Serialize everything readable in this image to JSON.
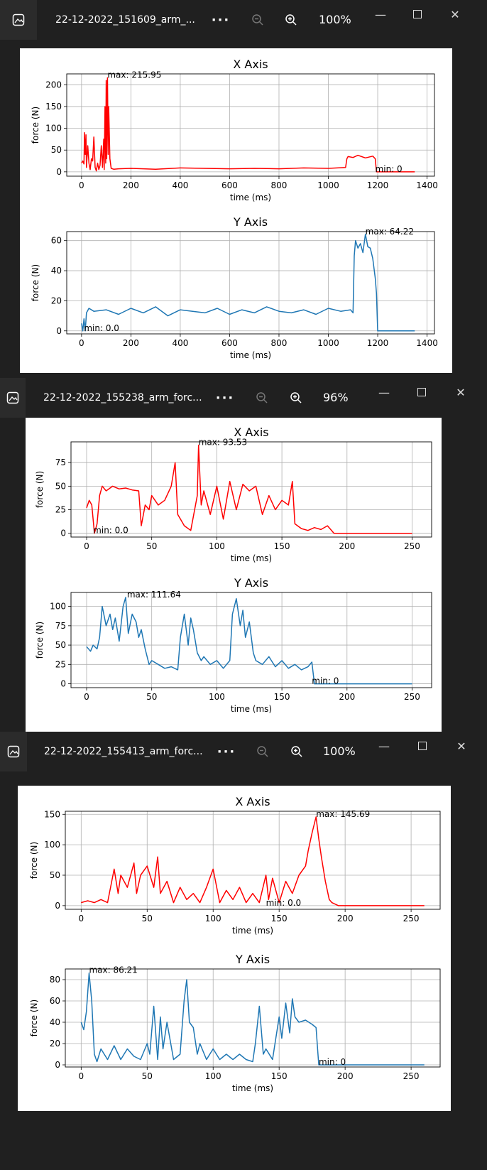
{
  "windows": [
    {
      "file_name": "22-12-2022_151609_arm_...",
      "zoom": "100%",
      "figure": [
        {
          "title": "X Axis",
          "xlabel": "time (ms)",
          "ylabel": "force (N)",
          "xticks": [
            "0",
            "200",
            "400",
            "600",
            "800",
            "1000",
            "1200",
            "1400"
          ],
          "yticks": [
            "0",
            "50",
            "100",
            "150",
            "200"
          ],
          "annotations": [
            "max: 215.95",
            "min: 0"
          ],
          "color": "#ff0000"
        },
        {
          "title": "Y Axis",
          "xlabel": "time (ms)",
          "ylabel": "force (N)",
          "xticks": [
            "0",
            "200",
            "400",
            "600",
            "800",
            "1000",
            "1200",
            "1400"
          ],
          "yticks": [
            "0",
            "20",
            "40",
            "60"
          ],
          "annotations": [
            "max: 64.22",
            "min: 0.0"
          ],
          "color": "#1f77b4"
        }
      ]
    },
    {
      "file_name": "22-12-2022_155238_arm_forc...",
      "zoom": "96%",
      "figure": [
        {
          "title": "X Axis",
          "xlabel": "time (ms)",
          "ylabel": "force (N)",
          "xticks": [
            "0",
            "50",
            "100",
            "150",
            "200",
            "250"
          ],
          "yticks": [
            "0",
            "25",
            "50",
            "75"
          ],
          "annotations": [
            "max: 93.53",
            "min: 0.0"
          ],
          "color": "#ff0000"
        },
        {
          "title": "Y Axis",
          "xlabel": "time (ms)",
          "ylabel": "force (N)",
          "xticks": [
            "0",
            "50",
            "100",
            "150",
            "200",
            "250"
          ],
          "yticks": [
            "0",
            "25",
            "50",
            "75",
            "100"
          ],
          "annotations": [
            "max: 111.64",
            "min: 0"
          ],
          "color": "#1f77b4"
        }
      ]
    },
    {
      "file_name": "22-12-2022_155413_arm_forc...",
      "zoom": "100%",
      "figure": [
        {
          "title": "X Axis",
          "xlabel": "time (ms)",
          "ylabel": "force (N)",
          "xticks": [
            "0",
            "50",
            "100",
            "150",
            "200",
            "250"
          ],
          "yticks": [
            "0",
            "50",
            "100",
            "150"
          ],
          "annotations": [
            "max: 145.69",
            "min: 0.0"
          ],
          "color": "#ff0000"
        },
        {
          "title": "Y Axis",
          "xlabel": "time (ms)",
          "ylabel": "force (N)",
          "xticks": [
            "0",
            "50",
            "100",
            "150",
            "200",
            "250"
          ],
          "yticks": [
            "0",
            "20",
            "40",
            "60",
            "80"
          ],
          "annotations": [
            "max: 86.21",
            "min: 0"
          ],
          "color": "#1f77b4"
        }
      ]
    }
  ],
  "chart_data": [
    {
      "type": "line",
      "title": "X Axis",
      "xlabel": "time (ms)",
      "ylabel": "force (N)",
      "xlim": [
        -60,
        1430
      ],
      "ylim": [
        -10,
        225
      ],
      "grid": true,
      "series": [
        {
          "x": [
            0,
            5,
            10,
            12,
            15,
            18,
            20,
            25,
            30,
            35,
            40,
            45,
            50,
            55,
            60,
            65,
            70,
            75,
            80,
            85,
            90,
            92,
            95,
            98,
            100,
            102,
            105,
            108,
            110,
            115,
            120,
            130,
            150,
            200,
            300,
            400,
            500,
            600,
            700,
            800,
            900,
            1000,
            1070,
            1075,
            1080,
            1100,
            1120,
            1150,
            1180,
            1190,
            1195,
            1200,
            1250,
            1300,
            1350
          ],
          "y": [
            20,
            25,
            18,
            90,
            40,
            85,
            10,
            60,
            20,
            5,
            30,
            25,
            80,
            10,
            2,
            20,
            5,
            15,
            60,
            10,
            75,
            5,
            150,
            20,
            210,
            30,
            215.95,
            40,
            150,
            30,
            8,
            6,
            7,
            8,
            6,
            9,
            8,
            7,
            8,
            7,
            9,
            8,
            10,
            30,
            35,
            33,
            38,
            32,
            36,
            30,
            0,
            0,
            0,
            0,
            0
          ]
        }
      ],
      "annotations": [
        "max: 215.95",
        "min: 0"
      ]
    },
    {
      "type": "line",
      "title": "Y Axis",
      "xlabel": "time (ms)",
      "ylabel": "force (N)",
      "xlim": [
        -60,
        1430
      ],
      "ylim": [
        -2,
        66
      ],
      "grid": true,
      "series": [
        {
          "x": [
            0,
            5,
            10,
            15,
            20,
            30,
            50,
            100,
            150,
            200,
            250,
            300,
            350,
            400,
            450,
            500,
            550,
            600,
            650,
            700,
            750,
            800,
            850,
            900,
            950,
            1000,
            1050,
            1090,
            1100,
            1105,
            1110,
            1120,
            1130,
            1140,
            1150,
            1160,
            1170,
            1180,
            1190,
            1195,
            1200,
            1210,
            1250,
            1300,
            1350
          ],
          "y": [
            5,
            0,
            8,
            0,
            12,
            15,
            13,
            14,
            11,
            15,
            12,
            16,
            10,
            14,
            13,
            12,
            15,
            11,
            14,
            12,
            16,
            13,
            12,
            14,
            11,
            15,
            13,
            14,
            12,
            50,
            60,
            55,
            58,
            52,
            64.22,
            56,
            55,
            48,
            35,
            25,
            0,
            0,
            0,
            0,
            0
          ]
        }
      ],
      "annotations": [
        "max: 64.22",
        "min: 0.0"
      ]
    },
    {
      "type": "line",
      "title": "X Axis",
      "xlabel": "time (ms)",
      "ylabel": "force (N)",
      "xlim": [
        -12,
        265
      ],
      "ylim": [
        -4,
        97
      ],
      "grid": true,
      "series": [
        {
          "x": [
            0,
            2,
            4,
            6,
            8,
            10,
            12,
            15,
            20,
            25,
            30,
            35,
            40,
            42,
            45,
            48,
            50,
            55,
            60,
            65,
            68,
            70,
            75,
            80,
            85,
            86,
            88,
            90,
            95,
            100,
            105,
            110,
            115,
            120,
            125,
            130,
            135,
            140,
            145,
            150,
            155,
            158,
            160,
            165,
            170,
            175,
            180,
            185,
            190,
            200,
            250
          ],
          "y": [
            27,
            35,
            30,
            0,
            10,
            40,
            50,
            45,
            50,
            47,
            48,
            46,
            45,
            8,
            30,
            25,
            40,
            30,
            35,
            50,
            75,
            20,
            8,
            3,
            40,
            93.53,
            30,
            45,
            20,
            50,
            15,
            55,
            25,
            52,
            45,
            50,
            20,
            40,
            25,
            35,
            30,
            55,
            10,
            5,
            3,
            6,
            4,
            8,
            0,
            0,
            0
          ]
        }
      ],
      "annotations": [
        "max: 93.53",
        "min: 0.0"
      ]
    },
    {
      "type": "line",
      "title": "Y Axis",
      "xlabel": "time (ms)",
      "ylabel": "force (N)",
      "xlim": [
        -12,
        265
      ],
      "ylim": [
        -5,
        118
      ],
      "grid": true,
      "series": [
        {
          "x": [
            0,
            3,
            5,
            8,
            10,
            12,
            15,
            18,
            20,
            22,
            25,
            28,
            30,
            32,
            35,
            38,
            40,
            42,
            45,
            48,
            50,
            55,
            60,
            65,
            70,
            72,
            75,
            78,
            80,
            82,
            85,
            88,
            90,
            95,
            100,
            105,
            110,
            112,
            115,
            118,
            120,
            122,
            125,
            128,
            130,
            135,
            140,
            145,
            150,
            155,
            160,
            165,
            170,
            173,
            175,
            200,
            250
          ],
          "y": [
            48,
            42,
            50,
            45,
            60,
            100,
            75,
            90,
            70,
            85,
            55,
            100,
            111.64,
            65,
            90,
            80,
            60,
            70,
            45,
            25,
            30,
            25,
            20,
            22,
            18,
            60,
            90,
            50,
            85,
            70,
            40,
            30,
            35,
            25,
            30,
            20,
            30,
            90,
            110,
            75,
            95,
            60,
            80,
            40,
            30,
            25,
            35,
            22,
            30,
            20,
            25,
            18,
            22,
            28,
            0,
            0,
            0
          ]
        }
      ],
      "annotations": [
        "max: 111.64",
        "min: 0"
      ]
    },
    {
      "type": "line",
      "title": "X Axis",
      "xlabel": "time (ms)",
      "ylabel": "force (N)",
      "xlim": [
        -12,
        272
      ],
      "ylim": [
        -6,
        155
      ],
      "grid": true,
      "series": [
        {
          "x": [
            0,
            5,
            10,
            15,
            20,
            25,
            28,
            30,
            35,
            40,
            42,
            45,
            50,
            55,
            58,
            60,
            65,
            70,
            75,
            80,
            85,
            90,
            95,
            100,
            105,
            110,
            115,
            120,
            125,
            130,
            135,
            140,
            142,
            145,
            150,
            155,
            160,
            165,
            170,
            172,
            175,
            178,
            180,
            182,
            185,
            188,
            190,
            195,
            200,
            250,
            260
          ],
          "y": [
            5,
            8,
            5,
            10,
            5,
            60,
            20,
            50,
            30,
            70,
            20,
            50,
            65,
            30,
            80,
            20,
            40,
            5,
            30,
            10,
            20,
            5,
            30,
            60,
            5,
            25,
            10,
            30,
            5,
            20,
            5,
            50,
            10,
            45,
            5,
            40,
            20,
            50,
            65,
            90,
            120,
            145.69,
            110,
            80,
            40,
            10,
            5,
            0,
            0,
            0,
            0
          ]
        }
      ],
      "annotations": [
        "max: 145.69",
        "min: 0.0"
      ]
    },
    {
      "type": "line",
      "title": "Y Axis",
      "xlabel": "time (ms)",
      "ylabel": "force (N)",
      "xlim": [
        -12,
        272
      ],
      "ylim": [
        -2,
        90
      ],
      "grid": true,
      "series": [
        {
          "x": [
            0,
            2,
            4,
            6,
            8,
            10,
            12,
            15,
            20,
            25,
            30,
            35,
            40,
            45,
            50,
            52,
            55,
            58,
            60,
            62,
            65,
            70,
            75,
            78,
            80,
            82,
            85,
            88,
            90,
            95,
            100,
            105,
            110,
            115,
            120,
            125,
            130,
            132,
            135,
            138,
            140,
            145,
            150,
            152,
            155,
            158,
            160,
            162,
            165,
            170,
            175,
            178,
            180,
            200,
            250,
            260
          ],
          "y": [
            40,
            33,
            50,
            86.21,
            60,
            10,
            3,
            15,
            5,
            18,
            5,
            15,
            8,
            5,
            20,
            10,
            55,
            5,
            45,
            15,
            40,
            5,
            10,
            60,
            80,
            40,
            35,
            10,
            20,
            5,
            15,
            5,
            10,
            5,
            10,
            5,
            3,
            20,
            55,
            10,
            15,
            5,
            45,
            25,
            58,
            30,
            62,
            45,
            40,
            42,
            38,
            35,
            0,
            0,
            0,
            0
          ]
        }
      ],
      "annotations": [
        "max: 86.21",
        "min: 0"
      ]
    }
  ]
}
